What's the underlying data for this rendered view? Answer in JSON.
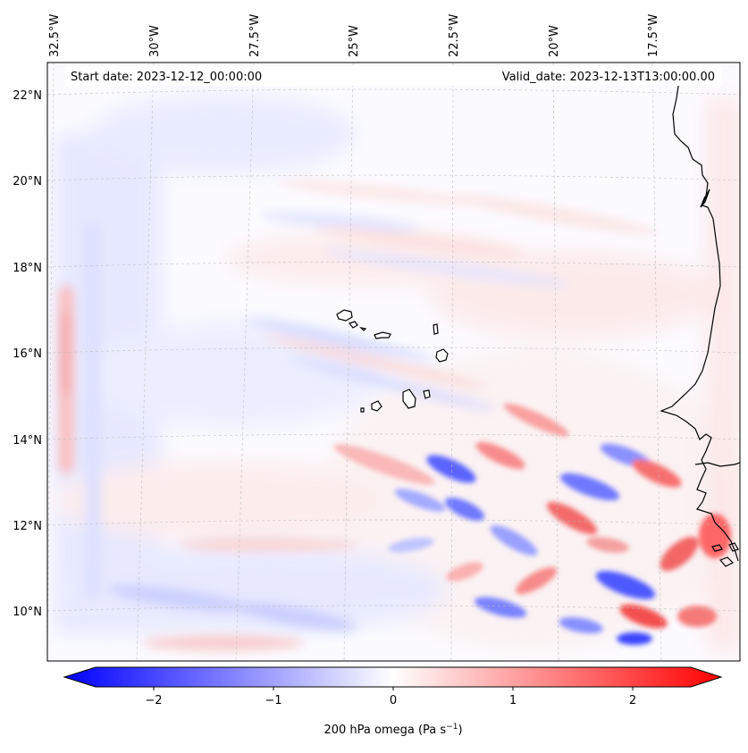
{
  "header": {
    "start_date": "Start date: 2023-12-12_00:00:00",
    "valid_date": "Valid_date: 2023-12-13T13:00:00.00"
  },
  "map": {
    "lat_labels": [
      "22°N",
      "20°N",
      "18°N",
      "16°N",
      "14°N",
      "12°N",
      "10°N"
    ],
    "lon_labels": [
      "32.5°W",
      "30°W",
      "27.5°W",
      "25°W",
      "22.5°W",
      "20°W",
      "17.5°W"
    ],
    "field_colors": {
      "negative": "#0000ff",
      "zero": "#ffffff",
      "positive": "#ff0000"
    }
  },
  "colorbar": {
    "ticks": [
      "−2",
      "−1",
      "0",
      "1",
      "2"
    ],
    "label": "200 hPa omega (Pa s",
    "label_sup": "−1",
    "label_end": ")"
  }
}
